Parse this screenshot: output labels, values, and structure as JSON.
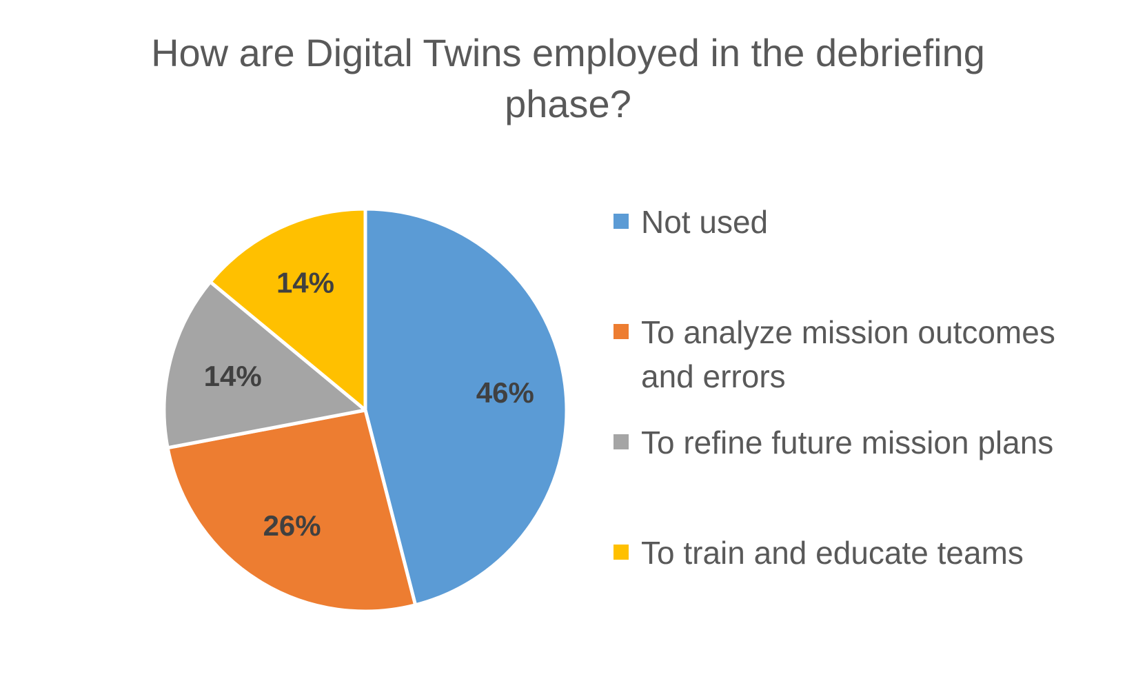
{
  "chart_data": {
    "type": "pie",
    "title": "How are Digital Twins employed in the debriefing phase?",
    "categories": [
      "Not used",
      "To analyze mission outcomes and errors",
      "To refine future mission plans",
      "To train and educate teams"
    ],
    "values": [
      46,
      26,
      14,
      14
    ],
    "labels": [
      "46%",
      "26%",
      "14%",
      "14%"
    ],
    "colors": [
      "#5B9BD5",
      "#ED7D31",
      "#A5A5A5",
      "#FFC000"
    ],
    "start_angle": "12 o'clock",
    "direction": "clockwise",
    "legend_position": "right"
  }
}
